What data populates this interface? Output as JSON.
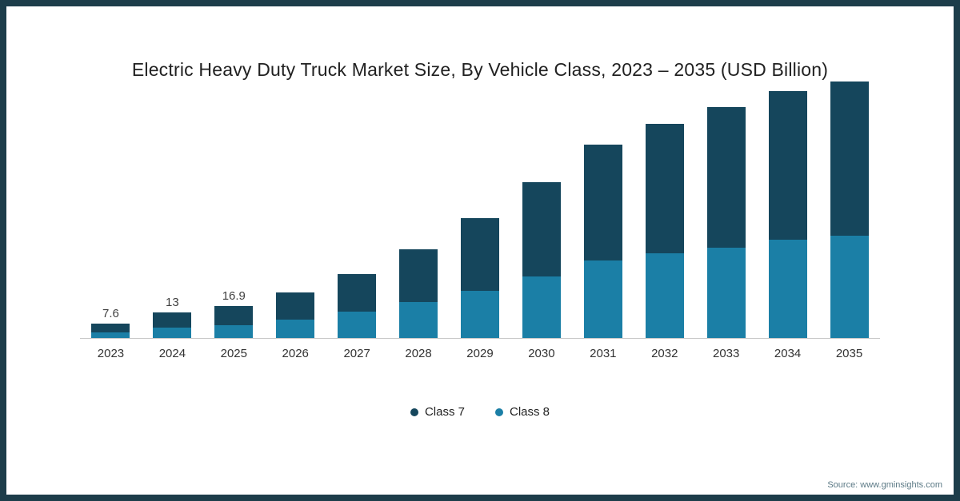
{
  "title": "Electric Heavy Duty Truck Market Size, By Vehicle Class, 2023 – 2035 (USD Billion)",
  "source": "Source: www.gminsights.com",
  "colors": {
    "class7": "#15465c",
    "class8": "#1b7fa6",
    "frame_border": "#1d3d4a",
    "axis_line": "#c8c8c8"
  },
  "legend": {
    "items": [
      {
        "label": "Class 7",
        "color": "#15465c"
      },
      {
        "label": "Class 8",
        "color": "#1b7fa6"
      }
    ]
  },
  "chart_data": {
    "type": "bar",
    "stacked": true,
    "title": "Electric Heavy Duty Truck Market Size, By Vehicle Class, 2023 – 2035 (USD Billion)",
    "xlabel": "",
    "ylabel": "USD Billion",
    "ylim": [
      0,
      140
    ],
    "grid": false,
    "legend_position": "bottom",
    "categories": [
      "2023",
      "2024",
      "2025",
      "2026",
      "2027",
      "2028",
      "2029",
      "2030",
      "2031",
      "2032",
      "2033",
      "2034",
      "2035"
    ],
    "series": [
      {
        "name": "Class 7",
        "color": "#15465c",
        "values": [
          4.6,
          7.8,
          10.1,
          14.0,
          19.5,
          27.5,
          37.5,
          49.0,
          60.0,
          67.0,
          73.0,
          77.0,
          80.0
        ]
      },
      {
        "name": "Class 8",
        "color": "#1b7fa6",
        "values": [
          3.0,
          5.2,
          6.8,
          9.5,
          13.5,
          18.5,
          24.5,
          32.0,
          40.0,
          44.0,
          47.0,
          51.0,
          53.0
        ]
      }
    ],
    "totals": [
      7.6,
      13,
      16.9,
      23.5,
      33,
      46,
      62,
      81,
      100,
      111,
      120,
      128,
      133
    ],
    "data_labels": [
      "7.6",
      "13",
      "16.9",
      "",
      "",
      "",
      "",
      "",
      "",
      "",
      "",
      "",
      ""
    ]
  }
}
